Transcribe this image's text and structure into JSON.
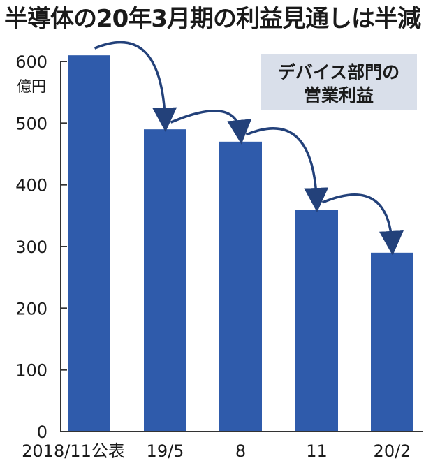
{
  "title": "半導体の20年3月期の利益見通しは半減",
  "chart_data": {
    "type": "bar",
    "title": "半導体の20年3月期の利益見通しは半減",
    "legend": "デバイス部門の営業利益",
    "legend_lines": [
      "デバイス部門の",
      "営業利益"
    ],
    "unit": "億円",
    "categories": [
      "2018/11公表",
      "19/5",
      "8",
      "11",
      "20/2"
    ],
    "values": [
      610,
      490,
      470,
      360,
      290
    ],
    "ylim": [
      0,
      600
    ],
    "yticks": [
      0,
      100,
      200,
      300,
      400,
      500,
      600
    ],
    "grid": false,
    "legend_position": "top-right",
    "bar_color": "#2f5bab",
    "legend_bg": "#d9dfea",
    "arrow_color": "#23417a"
  }
}
